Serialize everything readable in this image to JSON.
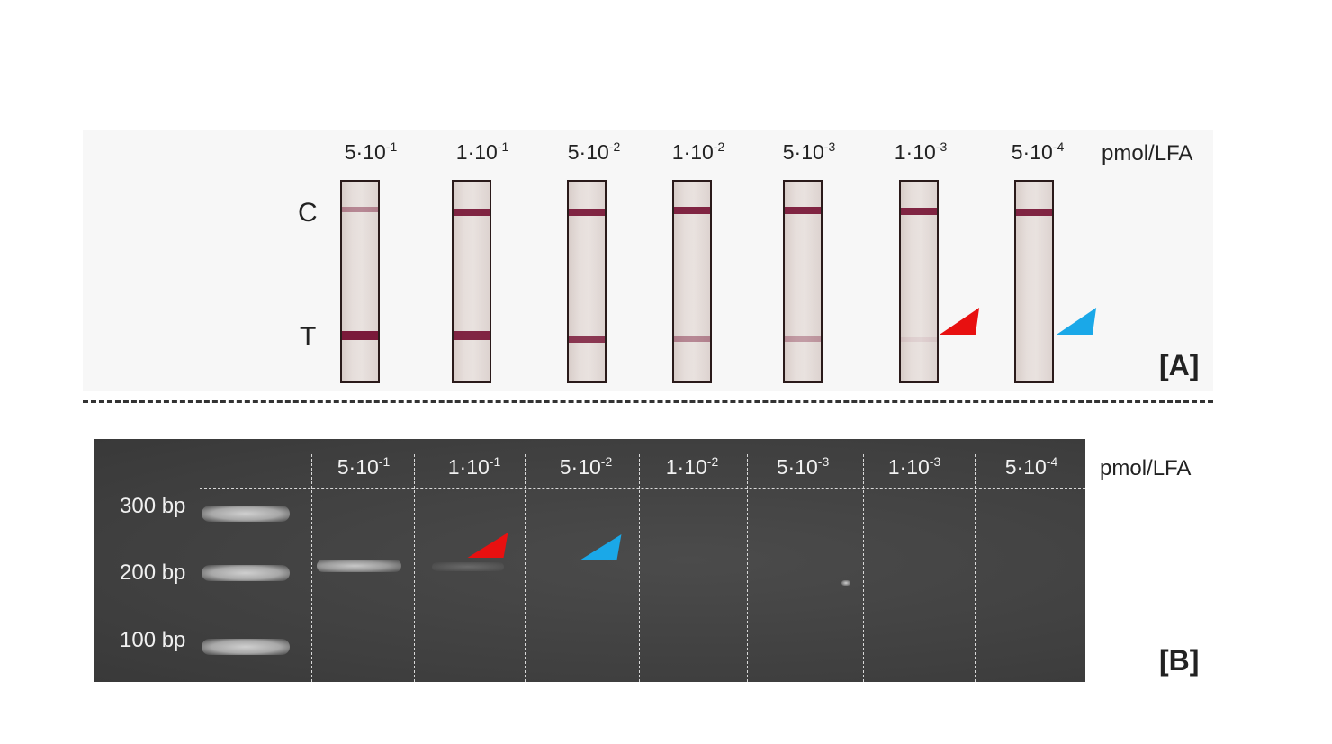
{
  "panel_a": {
    "concentrations": [
      {
        "base": "5·10",
        "exp": "-1"
      },
      {
        "base": "1·10",
        "exp": "-1"
      },
      {
        "base": "5·10",
        "exp": "-2"
      },
      {
        "base": "1·10",
        "exp": "-2"
      },
      {
        "base": "5·10",
        "exp": "-3"
      },
      {
        "base": "1·10",
        "exp": "-3"
      },
      {
        "base": "5·10",
        "exp": "-4"
      }
    ],
    "unit": "pmol/LFA",
    "control_label": "C",
    "test_label": "T",
    "tag": "[A]"
  },
  "panel_b": {
    "concentrations": [
      {
        "base": "5·10",
        "exp": "-1"
      },
      {
        "base": "1·10",
        "exp": "-1"
      },
      {
        "base": "5·10",
        "exp": "-2"
      },
      {
        "base": "1·10",
        "exp": "-2"
      },
      {
        "base": "5·10",
        "exp": "-3"
      },
      {
        "base": "1·10",
        "exp": "-3"
      },
      {
        "base": "5·10",
        "exp": "-4"
      }
    ],
    "unit": "pmol/LFA",
    "ladder": [
      "300 bp",
      "200 bp",
      "100 bp"
    ],
    "tag": "[B]"
  },
  "colors": {
    "band": "#7a1a3a",
    "red_arrow": "#e81010",
    "blue_arrow": "#1aa8e8",
    "gel_background": "#404040"
  }
}
